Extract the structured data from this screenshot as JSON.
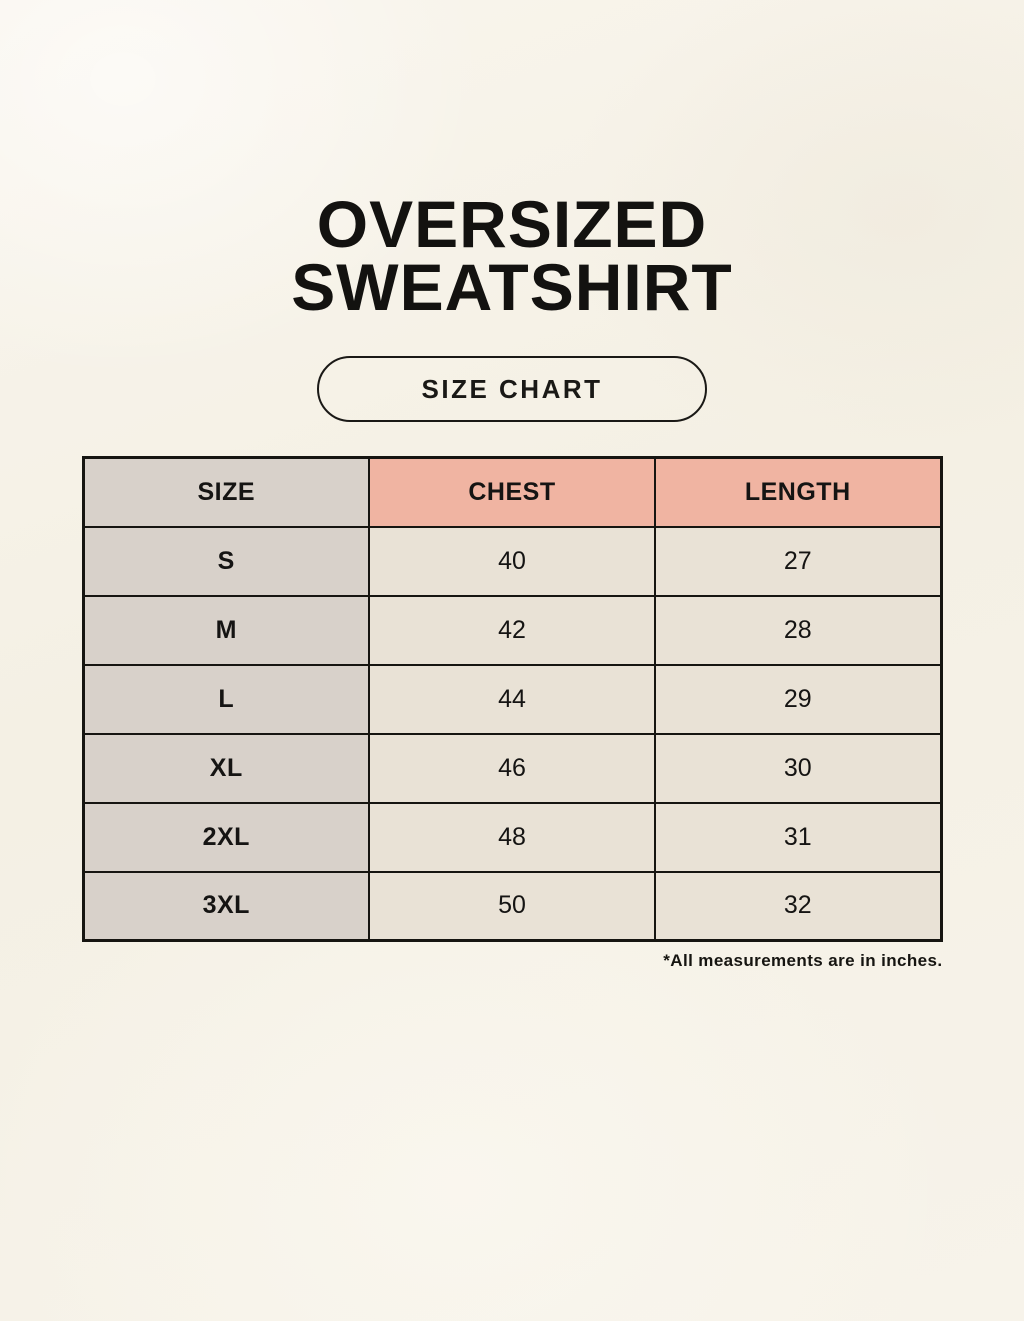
{
  "title": {
    "line1": "OVERSIZED",
    "line2": "SWEATSHIRT"
  },
  "size_chart_pill": {
    "label": "SIZE CHART"
  },
  "table": {
    "headers": [
      "SIZE",
      "CHEST",
      "LENGTH"
    ],
    "rows": [
      {
        "size": "S",
        "chest": "40",
        "length": "27"
      },
      {
        "size": "M",
        "chest": "42",
        "length": "28"
      },
      {
        "size": "L",
        "chest": "44",
        "length": "29"
      },
      {
        "size": "XL",
        "chest": "46",
        "length": "30"
      },
      {
        "size": "2XL",
        "chest": "48",
        "length": "31"
      },
      {
        "size": "3XL",
        "chest": "50",
        "length": "32"
      }
    ]
  },
  "footnote": "*All measurements are in inches.",
  "colors": {
    "background": "#f6f2e7",
    "size_column_bg": "#d8d1ca",
    "header_accent_bg": "#f0b4a2",
    "data_cell_bg": "#e9e2d6",
    "border": "#161511",
    "text": "#151413"
  }
}
